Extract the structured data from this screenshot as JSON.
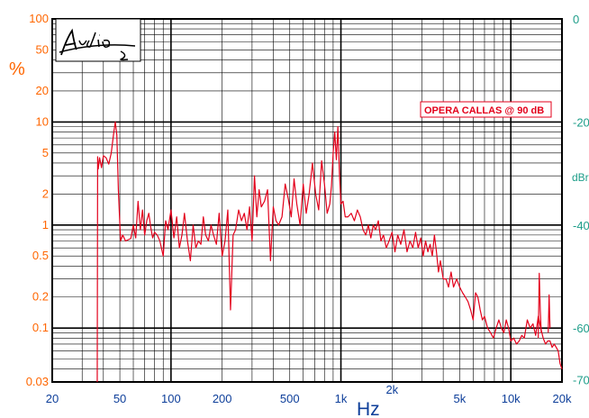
{
  "chart_data": {
    "type": "line",
    "title": "",
    "xlabel": "Hz",
    "ylabel": "%",
    "ylabel_right": "dBr",
    "x_scale": "log",
    "y_scale": "log",
    "xlim": [
      20,
      20000
    ],
    "ylim": [
      0.03,
      100
    ],
    "ylim_right": [
      -70,
      0
    ],
    "grid": true,
    "legend": "none",
    "x_ticks": [
      {
        "value": 20,
        "label": "20"
      },
      {
        "value": 50,
        "label": "50"
      },
      {
        "value": 100,
        "label": "100"
      },
      {
        "value": 200,
        "label": "200"
      },
      {
        "value": 500,
        "label": "500"
      },
      {
        "value": 1000,
        "label": "1k"
      },
      {
        "value": 2000,
        "label": "2k"
      },
      {
        "value": 5000,
        "label": "5k"
      },
      {
        "value": 10000,
        "label": "10k"
      },
      {
        "value": 20000,
        "label": "20k"
      }
    ],
    "y_ticks": [
      {
        "value": 100,
        "label": "100"
      },
      {
        "value": 50,
        "label": "50"
      },
      {
        "value": 20,
        "label": "20"
      },
      {
        "value": 10,
        "label": "10"
      },
      {
        "value": 5,
        "label": "5"
      },
      {
        "value": 2,
        "label": "2"
      },
      {
        "value": 1,
        "label": "1"
      },
      {
        "value": 0.5,
        "label": "0.5"
      },
      {
        "value": 0.2,
        "label": "0.2"
      },
      {
        "value": 0.1,
        "label": "0.1"
      },
      {
        "value": 0.03,
        "label": "0.03"
      }
    ],
    "y_ticks_right": [
      {
        "value": 0,
        "label": "0"
      },
      {
        "value": -20,
        "label": "-20"
      },
      {
        "value": -40,
        "label": "-40"
      },
      {
        "value": -60,
        "label": "-60"
      },
      {
        "value": -70,
        "label": "-70"
      }
    ],
    "annotation": "OPERA CALLAS @ 90 dB",
    "series": [
      {
        "color": "#e3001b",
        "x": [
          36.8,
          37.0,
          37.3,
          38.0,
          39.0,
          40.0,
          41.5,
          43.0,
          44.5,
          46.0,
          47.0,
          48.0,
          49.0,
          50.5,
          52.0,
          54.0,
          56.0,
          58.0,
          60.0,
          62.0,
          64.0,
          66.0,
          68.0,
          70.0,
          72.0,
          74.0,
          76.0,
          78.0,
          80.0,
          83.0,
          86.0,
          90.0,
          93.0,
          96.0,
          100.0,
          104.0,
          108.0,
          112.0,
          116.0,
          120.0,
          125.0,
          130.0,
          135.0,
          140.0,
          145.0,
          150.0,
          155.0,
          160.0,
          166.0,
          172.0,
          178.0,
          185.0,
          192.0,
          200.0,
          208.0,
          216.0,
          224.0,
          232.0,
          240.0,
          250.0,
          260.0,
          270.0,
          280.0,
          290.0,
          300.0,
          310.0,
          320.0,
          330.0,
          340.0,
          355.0,
          370.0,
          385.0,
          400.0,
          415.0,
          430.0,
          450.0,
          470.0,
          490.0,
          510.0,
          530.0,
          550.0,
          575.0,
          600.0,
          625.0,
          650.0,
          680.0,
          710.0,
          740.0,
          770.0,
          800.0,
          830.0,
          860.0,
          880.0,
          900.0,
          920.0,
          940.0,
          960.0,
          980.0,
          1000.0,
          1030.0,
          1060.0,
          1100.0,
          1150.0,
          1200.0,
          1250.0,
          1300.0,
          1350.0,
          1400.0,
          1450.0,
          1500.0,
          1550.0,
          1600.0,
          1660.0,
          1720.0,
          1780.0,
          1850.0,
          1920.0,
          2000.0,
          2080.0,
          2160.0,
          2250.0,
          2350.0,
          2450.0,
          2550.0,
          2650.0,
          2750.0,
          2850.0,
          2950.0,
          3050.0,
          3150.0,
          3250.0,
          3350.0,
          3450.0,
          3550.0,
          3650.0,
          3750.0,
          3850.0,
          4000.0,
          4150.0,
          4300.0,
          4450.0,
          4600.0,
          4800.0,
          5000.0,
          5200.0,
          5400.0,
          5600.0,
          5800.0,
          6000.0,
          6200.0,
          6400.0,
          6600.0,
          6800.0,
          7000.0,
          7300.0,
          7600.0,
          7900.0,
          8200.0,
          8500.0,
          8800.0,
          9100.0,
          9400.0,
          9700.0,
          10000.0,
          10400.0,
          10800.0,
          11200.0,
          11600.0,
          12000.0,
          12500.0,
          13000.0,
          13500.0,
          14000.0,
          14500.0,
          15000.0,
          15500.0,
          16000.0,
          16500.0,
          17000.0,
          17500.0,
          18000.0,
          18500.0,
          19000.0,
          19500.0,
          20000.0
        ],
        "y": [
          0.03,
          4.6,
          3.5,
          4.5,
          3.6,
          4.7,
          4.5,
          3.9,
          5.0,
          7.8,
          10.0,
          7.5,
          2.2,
          0.7,
          0.8,
          0.7,
          0.72,
          0.74,
          1.0,
          0.75,
          1.7,
          0.9,
          1.4,
          0.8,
          1.1,
          1.3,
          0.95,
          0.75,
          0.85,
          0.8,
          0.7,
          0.5,
          1.1,
          0.9,
          1.4,
          0.75,
          1.2,
          0.6,
          0.8,
          1.3,
          0.7,
          0.45,
          1.0,
          0.6,
          0.7,
          0.65,
          1.2,
          0.8,
          0.7,
          1.0,
          0.8,
          0.65,
          1.3,
          0.5,
          0.7,
          1.4,
          0.15,
          0.8,
          0.9,
          1.4,
          1.1,
          1.3,
          0.9,
          1.5,
          0.7,
          3.0,
          1.2,
          2.2,
          1.5,
          1.7,
          2.2,
          0.45,
          1.5,
          1.1,
          1.0,
          1.2,
          2.5,
          1.8,
          1.2,
          2.8,
          1.6,
          1.0,
          2.5,
          1.3,
          2.0,
          4.0,
          2.0,
          1.4,
          4.2,
          2.5,
          1.3,
          1.6,
          2.4,
          5.0,
          8.0,
          4.3,
          9.0,
          3.2,
          1.6,
          1.7,
          1.2,
          1.2,
          1.3,
          1.1,
          1.4,
          1.2,
          0.9,
          0.8,
          1.0,
          0.75,
          1.0,
          0.9,
          1.1,
          0.7,
          0.8,
          0.6,
          0.7,
          0.85,
          0.55,
          0.8,
          0.65,
          0.9,
          0.55,
          0.7,
          0.6,
          0.85,
          0.6,
          0.75,
          0.5,
          0.7,
          0.55,
          0.65,
          0.5,
          0.8,
          0.55,
          0.35,
          0.45,
          0.3,
          0.3,
          0.25,
          0.35,
          0.25,
          0.3,
          0.25,
          0.22,
          0.2,
          0.18,
          0.15,
          0.12,
          0.22,
          0.2,
          0.15,
          0.12,
          0.13,
          0.1,
          0.09,
          0.08,
          0.1,
          0.12,
          0.1,
          0.09,
          0.12,
          0.1,
          0.075,
          0.08,
          0.07,
          0.075,
          0.085,
          0.08,
          0.12,
          0.1,
          0.11,
          0.085,
          0.13,
          0.1,
          0.08,
          0.07,
          0.075,
          0.075,
          0.065,
          0.07,
          0.065,
          0.06,
          0.045,
          0.04
        ]
      },
      {
        "color": "#e3001b",
        "x": [
          14500.0,
          14700.0,
          14900.0,
          15100.0
        ],
        "y": [
          0.08,
          0.34,
          0.15,
          0.09
        ]
      },
      {
        "color": "#e3001b",
        "x": [
          16600.0,
          16800.0,
          17000.0
        ],
        "y": [
          0.09,
          0.21,
          0.1
        ]
      }
    ]
  }
}
